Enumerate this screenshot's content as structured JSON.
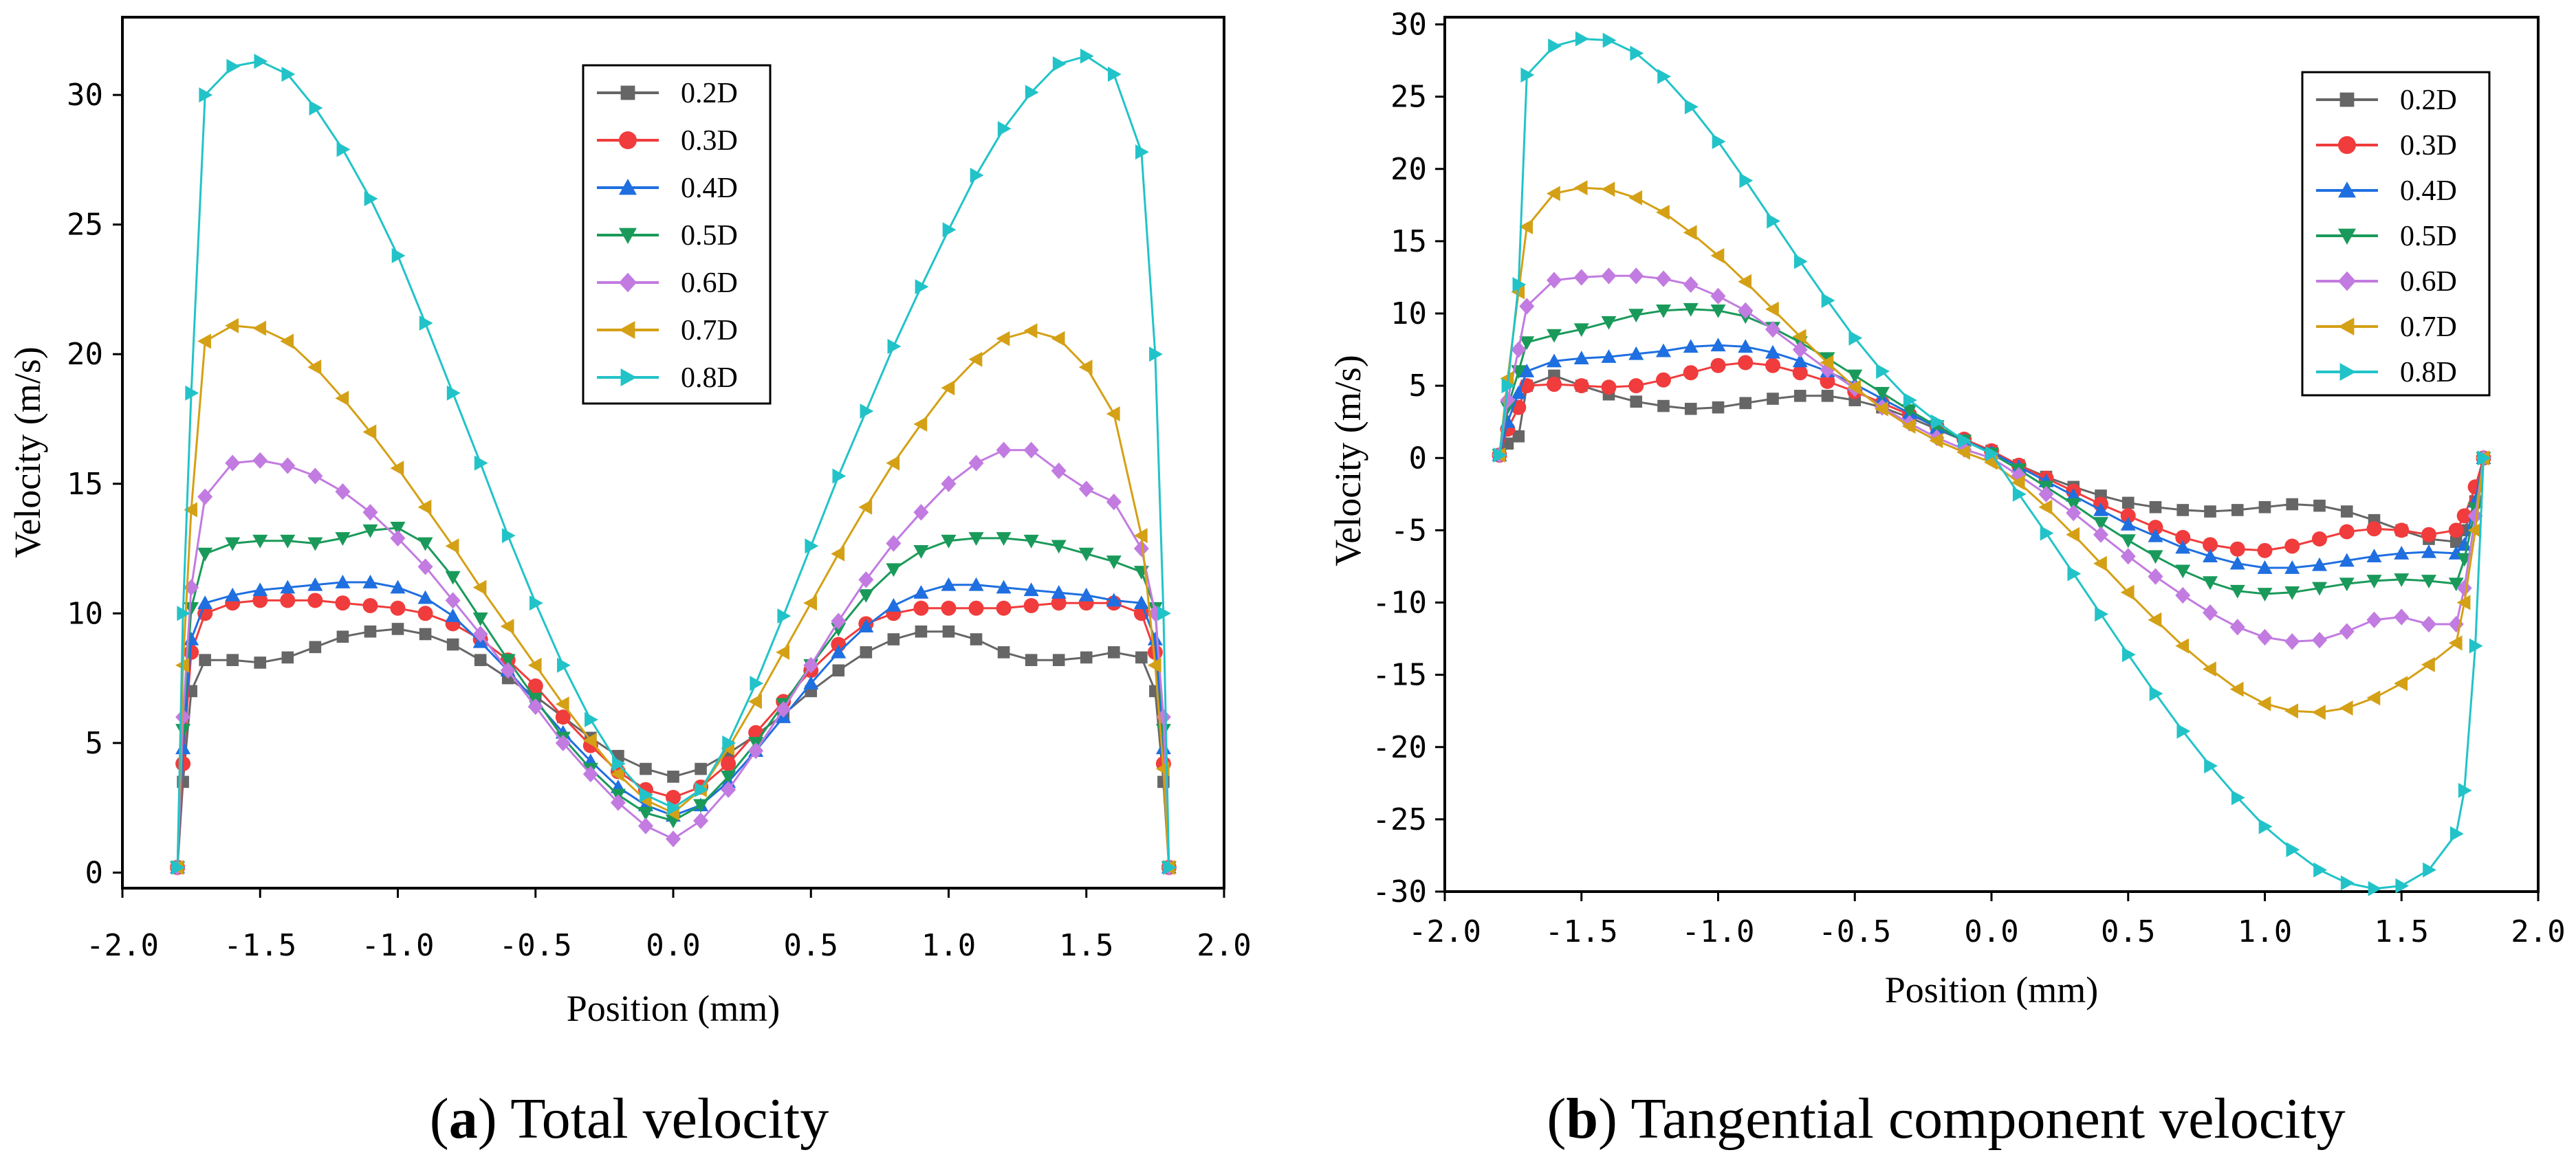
{
  "colors": {
    "0.2D": "#666666",
    "0.3D": "#f03c3c",
    "0.4D": "#1f6fe0",
    "0.5D": "#1a9a5a",
    "0.6D": "#c27be0",
    "0.7D": "#d4a015",
    "0.8D": "#22c3c8"
  },
  "chart_data": [
    {
      "type": "line",
      "caption_letter": "a",
      "caption_text": "Total velocity",
      "xlabel": "Position (mm)",
      "ylabel": "Velocity (m/s)",
      "xlim": [
        -2.0,
        2.0
      ],
      "ylim": [
        -0.6,
        33.0
      ],
      "xticks": [
        "-2.0",
        "-1.5",
        "-1.0",
        "-0.5",
        "0.0",
        "0.5",
        "1.0",
        "1.5",
        "2.0"
      ],
      "yticks": [
        "0",
        "5",
        "10",
        "15",
        "20",
        "25",
        "30"
      ],
      "legend_position": "top-center",
      "x": [
        -1.8,
        -1.78,
        -1.75,
        -1.7,
        -1.6,
        -1.5,
        -1.4,
        -1.3,
        -1.2,
        -1.1,
        -1.0,
        -0.9,
        -0.8,
        -0.7,
        -0.6,
        -0.5,
        -0.4,
        -0.3,
        -0.2,
        -0.1,
        0.0,
        0.1,
        0.2,
        0.3,
        0.4,
        0.5,
        0.6,
        0.7,
        0.8,
        0.9,
        1.0,
        1.1,
        1.2,
        1.3,
        1.4,
        1.5,
        1.6,
        1.7,
        1.75,
        1.78,
        1.8
      ],
      "series": [
        {
          "name": "0.2D",
          "marker": "square",
          "values": [
            0.2,
            3.5,
            7.0,
            8.2,
            8.2,
            8.1,
            8.3,
            8.7,
            9.1,
            9.3,
            9.4,
            9.2,
            8.8,
            8.2,
            7.5,
            6.8,
            6.0,
            5.2,
            4.5,
            4.0,
            3.7,
            4.0,
            4.6,
            5.3,
            6.1,
            7.0,
            7.8,
            8.5,
            9.0,
            9.3,
            9.3,
            9.0,
            8.5,
            8.2,
            8.2,
            8.3,
            8.5,
            8.3,
            7.0,
            3.5,
            0.2
          ]
        },
        {
          "name": "0.3D",
          "marker": "circle",
          "values": [
            0.2,
            4.2,
            8.5,
            10.0,
            10.4,
            10.5,
            10.5,
            10.5,
            10.4,
            10.3,
            10.2,
            10.0,
            9.6,
            9.0,
            8.2,
            7.2,
            6.0,
            4.9,
            3.9,
            3.2,
            2.9,
            3.3,
            4.2,
            5.4,
            6.6,
            7.8,
            8.8,
            9.6,
            10.0,
            10.2,
            10.2,
            10.2,
            10.2,
            10.3,
            10.4,
            10.4,
            10.4,
            10.0,
            8.5,
            4.2,
            0.2
          ]
        },
        {
          "name": "0.4D",
          "marker": "triangle-up",
          "values": [
            0.2,
            4.8,
            9.0,
            10.4,
            10.7,
            10.9,
            11.0,
            11.1,
            11.2,
            11.2,
            11.0,
            10.6,
            9.9,
            8.9,
            7.8,
            6.6,
            5.4,
            4.3,
            3.3,
            2.6,
            2.2,
            2.6,
            3.5,
            4.7,
            6.0,
            7.3,
            8.5,
            9.5,
            10.3,
            10.8,
            11.1,
            11.1,
            11.0,
            10.9,
            10.8,
            10.7,
            10.5,
            10.4,
            9.0,
            4.8,
            0.2
          ]
        },
        {
          "name": "0.5D",
          "marker": "triangle-down",
          "values": [
            0.2,
            5.5,
            10.2,
            12.3,
            12.7,
            12.8,
            12.8,
            12.7,
            12.9,
            13.2,
            13.3,
            12.7,
            11.4,
            9.8,
            8.2,
            6.7,
            5.2,
            4.0,
            3.0,
            2.3,
            2.0,
            2.6,
            3.7,
            5.0,
            6.5,
            8.0,
            9.4,
            10.7,
            11.7,
            12.4,
            12.8,
            12.9,
            12.9,
            12.8,
            12.6,
            12.3,
            12.0,
            11.6,
            10.2,
            5.5,
            0.2
          ]
        },
        {
          "name": "0.6D",
          "marker": "diamond",
          "values": [
            0.2,
            6.0,
            11.0,
            14.5,
            15.8,
            15.9,
            15.7,
            15.3,
            14.7,
            13.9,
            12.9,
            11.8,
            10.5,
            9.2,
            7.8,
            6.4,
            5.0,
            3.8,
            2.7,
            1.8,
            1.3,
            2.0,
            3.2,
            4.7,
            6.3,
            8.0,
            9.7,
            11.3,
            12.7,
            13.9,
            15.0,
            15.8,
            16.3,
            16.3,
            15.5,
            14.8,
            14.3,
            12.5,
            10.0,
            6.0,
            0.2
          ]
        },
        {
          "name": "0.7D",
          "marker": "triangle-left",
          "values": [
            0.2,
            8.0,
            14.0,
            20.5,
            21.1,
            21.0,
            20.5,
            19.5,
            18.3,
            17.0,
            15.6,
            14.1,
            12.6,
            11.0,
            9.5,
            8.0,
            6.5,
            5.1,
            3.8,
            2.8,
            2.3,
            3.2,
            4.8,
            6.6,
            8.5,
            10.4,
            12.3,
            14.1,
            15.8,
            17.3,
            18.7,
            19.8,
            20.6,
            20.9,
            20.6,
            19.5,
            17.7,
            13.0,
            8.0,
            4.0,
            0.2
          ]
        },
        {
          "name": "0.8D",
          "marker": "triangle-right",
          "values": [
            0.2,
            10.0,
            18.5,
            30.0,
            31.1,
            31.3,
            30.8,
            29.5,
            27.9,
            26.0,
            23.8,
            21.2,
            18.5,
            15.8,
            13.0,
            10.4,
            8.0,
            5.9,
            4.2,
            3.0,
            2.5,
            3.2,
            5.0,
            7.3,
            9.9,
            12.6,
            15.3,
            17.8,
            20.3,
            22.6,
            24.8,
            26.9,
            28.7,
            30.1,
            31.2,
            31.5,
            30.8,
            27.8,
            20.0,
            10.0,
            0.2
          ]
        }
      ]
    },
    {
      "type": "line",
      "caption_letter": "b",
      "caption_text": "Tangential component velocity",
      "xlabel": "Position (mm)",
      "ylabel": "Velocity (m/s)",
      "xlim": [
        -2.0,
        2.0
      ],
      "ylim": [
        -30.0,
        30.5
      ],
      "xticks": [
        "-2.0",
        "-1.5",
        "-1.0",
        "-0.5",
        "0.0",
        "0.5",
        "1.0",
        "1.5",
        "2.0"
      ],
      "yticks": [
        "-30",
        "-25",
        "-20",
        "-15",
        "-10",
        "-5",
        "0",
        "5",
        "10",
        "15",
        "20",
        "25",
        "30"
      ],
      "legend_position": "top-right",
      "x": [
        -1.8,
        -1.77,
        -1.73,
        -1.7,
        -1.6,
        -1.5,
        -1.4,
        -1.3,
        -1.2,
        -1.1,
        -1.0,
        -0.9,
        -0.8,
        -0.7,
        -0.6,
        -0.5,
        -0.4,
        -0.3,
        -0.2,
        -0.1,
        0.0,
        0.1,
        0.2,
        0.3,
        0.4,
        0.5,
        0.6,
        0.7,
        0.8,
        0.9,
        1.0,
        1.1,
        1.2,
        1.3,
        1.4,
        1.5,
        1.6,
        1.7,
        1.73,
        1.77,
        1.8
      ],
      "series": [
        {
          "name": "0.2D",
          "marker": "square",
          "values": [
            0.2,
            1.0,
            1.5,
            5.0,
            5.7,
            5.0,
            4.4,
            3.9,
            3.6,
            3.4,
            3.5,
            3.8,
            4.1,
            4.3,
            4.3,
            4.0,
            3.5,
            2.8,
            2.0,
            1.2,
            0.5,
            -0.5,
            -1.3,
            -2.0,
            -2.6,
            -3.1,
            -3.4,
            -3.6,
            -3.7,
            -3.6,
            -3.4,
            -3.2,
            -3.3,
            -3.7,
            -4.3,
            -5.0,
            -5.6,
            -5.8,
            -5.0,
            -3.0,
            0.0
          ]
        },
        {
          "name": "0.3D",
          "marker": "circle",
          "values": [
            0.2,
            2.0,
            3.5,
            5.0,
            5.1,
            5.0,
            4.9,
            5.0,
            5.4,
            5.9,
            6.4,
            6.6,
            6.4,
            5.9,
            5.3,
            4.6,
            3.8,
            3.0,
            2.2,
            1.3,
            0.5,
            -0.5,
            -1.4,
            -2.3,
            -3.2,
            -4.0,
            -4.8,
            -5.5,
            -6.0,
            -6.3,
            -6.4,
            -6.1,
            -5.6,
            -5.1,
            -4.9,
            -5.0,
            -5.3,
            -5.0,
            -4.0,
            -2.0,
            0.0
          ]
        },
        {
          "name": "0.4D",
          "marker": "triangle-up",
          "values": [
            0.2,
            2.5,
            4.5,
            6.0,
            6.7,
            6.9,
            7.0,
            7.2,
            7.4,
            7.7,
            7.8,
            7.7,
            7.3,
            6.7,
            6.0,
            5.1,
            4.1,
            3.1,
            2.1,
            1.2,
            0.4,
            -0.6,
            -1.6,
            -2.6,
            -3.6,
            -4.6,
            -5.4,
            -6.2,
            -6.8,
            -7.3,
            -7.6,
            -7.6,
            -7.4,
            -7.1,
            -6.8,
            -6.6,
            -6.5,
            -6.6,
            -6.0,
            -3.0,
            0.0
          ]
        },
        {
          "name": "0.5D",
          "marker": "triangle-down",
          "values": [
            0.2,
            3.5,
            6.0,
            8.0,
            8.5,
            8.9,
            9.4,
            9.9,
            10.2,
            10.3,
            10.2,
            9.8,
            9.0,
            8.0,
            6.9,
            5.7,
            4.5,
            3.3,
            2.2,
            1.2,
            0.3,
            -0.8,
            -2.0,
            -3.2,
            -4.5,
            -5.7,
            -6.8,
            -7.8,
            -8.6,
            -9.2,
            -9.4,
            -9.3,
            -9.0,
            -8.7,
            -8.5,
            -8.4,
            -8.5,
            -8.7,
            -7.0,
            -3.5,
            0.0
          ]
        },
        {
          "name": "0.6D",
          "marker": "diamond",
          "values": [
            0.2,
            4.0,
            7.5,
            10.5,
            12.3,
            12.5,
            12.6,
            12.6,
            12.4,
            12.0,
            11.2,
            10.2,
            8.9,
            7.5,
            6.1,
            4.8,
            3.5,
            2.4,
            1.4,
            0.6,
            0.0,
            -1.2,
            -2.5,
            -3.8,
            -5.3,
            -6.8,
            -8.2,
            -9.5,
            -10.7,
            -11.7,
            -12.4,
            -12.7,
            -12.6,
            -12.0,
            -11.2,
            -11.0,
            -11.5,
            -11.5,
            -9.0,
            -4.0,
            0.0
          ]
        },
        {
          "name": "0.7D",
          "marker": "triangle-left",
          "values": [
            0.2,
            5.5,
            11.5,
            16.0,
            18.3,
            18.7,
            18.6,
            18.0,
            17.0,
            15.6,
            14.0,
            12.2,
            10.3,
            8.4,
            6.6,
            4.9,
            3.4,
            2.2,
            1.2,
            0.4,
            -0.3,
            -1.7,
            -3.4,
            -5.3,
            -7.3,
            -9.3,
            -11.2,
            -13.0,
            -14.6,
            -16.0,
            -17.0,
            -17.5,
            -17.6,
            -17.3,
            -16.6,
            -15.6,
            -14.3,
            -12.8,
            -10.0,
            -5.0,
            0.0
          ]
        },
        {
          "name": "0.8D",
          "marker": "triangle-right",
          "values": [
            0.2,
            5.0,
            12.0,
            26.5,
            28.5,
            29.0,
            28.9,
            28.0,
            26.4,
            24.3,
            21.9,
            19.2,
            16.4,
            13.6,
            10.9,
            8.3,
            6.0,
            4.0,
            2.5,
            1.2,
            0.3,
            -2.5,
            -5.2,
            -8.0,
            -10.8,
            -13.6,
            -16.3,
            -18.9,
            -21.3,
            -23.5,
            -25.5,
            -27.1,
            -28.5,
            -29.4,
            -29.8,
            -29.6,
            -28.5,
            -26.0,
            -23.0,
            -13.0,
            0.0
          ]
        }
      ]
    }
  ]
}
